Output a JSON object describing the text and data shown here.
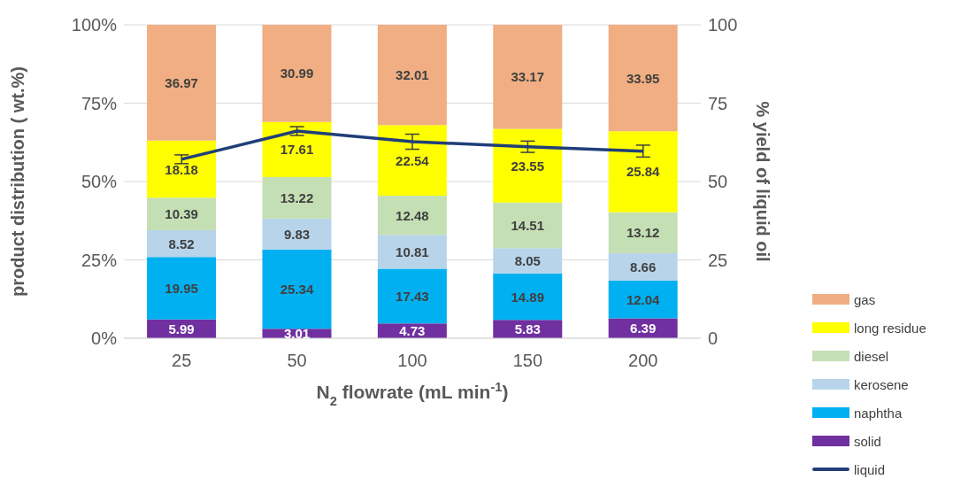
{
  "chart_data": {
    "type": "bar",
    "stacked": true,
    "xlabel": "N$_{2}$ flowrate (mL min$^{-1}$)",
    "ylabel": "product distribution ( wt.%)",
    "y2label": "% yield of liquid oil",
    "categories": [
      "25",
      "50",
      "100",
      "150",
      "200"
    ],
    "series": [
      {
        "name": "solid",
        "color": "#7030a0",
        "values": [
          5.99,
          3.01,
          4.73,
          5.83,
          6.39
        ],
        "value_labels": [
          "5.99",
          "3.01",
          "4.73",
          "5.83",
          "6.39"
        ]
      },
      {
        "name": "naphtha",
        "color": "#00b0f0",
        "values": [
          19.95,
          25.34,
          17.43,
          14.89,
          12.04
        ],
        "value_labels": [
          "19.95",
          "25.34",
          "17.43",
          "14.89",
          "12.04"
        ]
      },
      {
        "name": "kerosene",
        "color": "#b7d4ea",
        "values": [
          8.52,
          9.83,
          10.81,
          8.05,
          8.66
        ],
        "value_labels": [
          "8.52",
          "9.83",
          "10.81",
          "8.05",
          "8.66"
        ]
      },
      {
        "name": "diesel",
        "color": "#c5dfb5",
        "values": [
          10.39,
          13.22,
          12.48,
          14.51,
          13.12
        ],
        "value_labels": [
          "10.39",
          "13.22",
          "12.48",
          "14.51",
          "13.12"
        ]
      },
      {
        "name": "long residue",
        "color": "#ffff00",
        "values": [
          18.18,
          17.61,
          22.54,
          23.55,
          25.84
        ],
        "value_labels": [
          "18.18",
          "17.61",
          "22.54",
          "23.55",
          "25.84"
        ]
      },
      {
        "name": "gas",
        "color": "#f0ae82",
        "values": [
          36.97,
          30.99,
          32.01,
          33.17,
          33.95
        ],
        "value_labels": [
          "36.97",
          "30.99",
          "32.01",
          "33.17",
          "33.95"
        ]
      },
      {
        "name": "liquid",
        "type": "line",
        "axis": "y2",
        "color": "#203e79",
        "values": [
          57.1,
          66.1,
          62.7,
          61.1,
          59.7
        ],
        "errors": [
          1.4,
          1.4,
          2.4,
          1.8,
          1.9
        ]
      }
    ],
    "ylim": [
      0,
      100
    ],
    "yticks": [
      {
        "value": 0,
        "label": "0%"
      },
      {
        "value": 25,
        "label": "25%"
      },
      {
        "value": 50,
        "label": "50%"
      },
      {
        "value": 75,
        "label": "75%"
      },
      {
        "value": 100,
        "label": "100%"
      }
    ],
    "y2lim": [
      0,
      100
    ],
    "y2ticks": [
      0,
      25,
      50,
      75,
      100
    ],
    "grid": "y",
    "legend": "bottom right",
    "marker": "none",
    "line_style": "solid"
  }
}
